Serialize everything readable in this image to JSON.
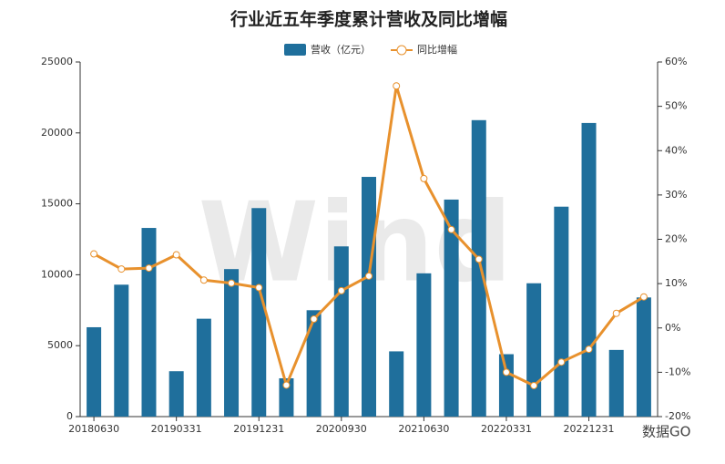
{
  "chart_data": {
    "type": "bar_line",
    "title": "行业近五年季度累计营收及同比增幅",
    "watermark": "Wind",
    "logo_text": "数据GO",
    "categories": [
      "20180630",
      null,
      null,
      "20190331",
      null,
      null,
      "20191231",
      null,
      null,
      "20200930",
      null,
      null,
      "20210630",
      null,
      null,
      "20220331",
      null,
      null,
      "20221231",
      null,
      null
    ],
    "series": [
      {
        "name": "营收（亿元）",
        "type": "bar",
        "color": "#1f6f9c",
        "values": [
          6300,
          9300,
          13300,
          3200,
          6900,
          10400,
          14700,
          2700,
          7500,
          12000,
          16900,
          4600,
          10100,
          15300,
          20900,
          4400,
          9400,
          14800,
          20700,
          4700,
          8400
        ]
      },
      {
        "name": "同比增幅",
        "type": "line",
        "axis": "y2",
        "color": "#e8912d",
        "values": [
          16.7,
          13.3,
          13.5,
          16.5,
          10.8,
          10.1,
          9.1,
          -12.9,
          2.0,
          8.4,
          11.7,
          54.6,
          33.7,
          22.2,
          15.5,
          -10.0,
          -13.0,
          -7.7,
          -4.8,
          3.3,
          7.0
        ]
      }
    ],
    "ylim": [
      0,
      25000
    ],
    "yticks": [
      0,
      5000,
      10000,
      15000,
      20000,
      25000
    ],
    "y2lim": [
      -20,
      60
    ],
    "y2ticks": [
      {
        "value": -20,
        "label": "-20%"
      },
      {
        "value": -10,
        "label": "-10%"
      },
      {
        "value": 0,
        "label": "0%"
      },
      {
        "value": 10,
        "label": "10%"
      },
      {
        "value": 20,
        "label": "20%"
      },
      {
        "value": 30,
        "label": "30%"
      },
      {
        "value": 40,
        "label": "40%"
      },
      {
        "value": 50,
        "label": "50%"
      },
      {
        "value": 60,
        "label": "60%"
      }
    ]
  }
}
